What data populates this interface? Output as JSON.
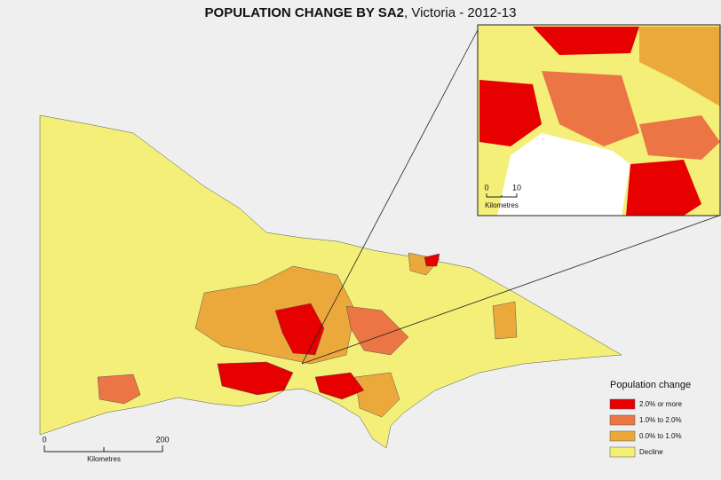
{
  "title": {
    "bold": "POPULATION CHANGE BY SA2",
    "rest": ", Victoria - 2012-13"
  },
  "legend": {
    "title": "Population change",
    "items": [
      {
        "label": "2.0% or more",
        "color": "#e60000"
      },
      {
        "label": "1.0% to 2.0%",
        "color": "#ec7545"
      },
      {
        "label": "0.0% to 1.0%",
        "color": "#eba93b"
      },
      {
        "label": "Decline",
        "color": "#f3ef78"
      }
    ]
  },
  "scale_bar": {
    "start": "0",
    "end": "200",
    "unit": "Kilometres"
  },
  "inset_scale_bar": {
    "start": "0",
    "end": "10",
    "unit": "Kilometres"
  }
}
